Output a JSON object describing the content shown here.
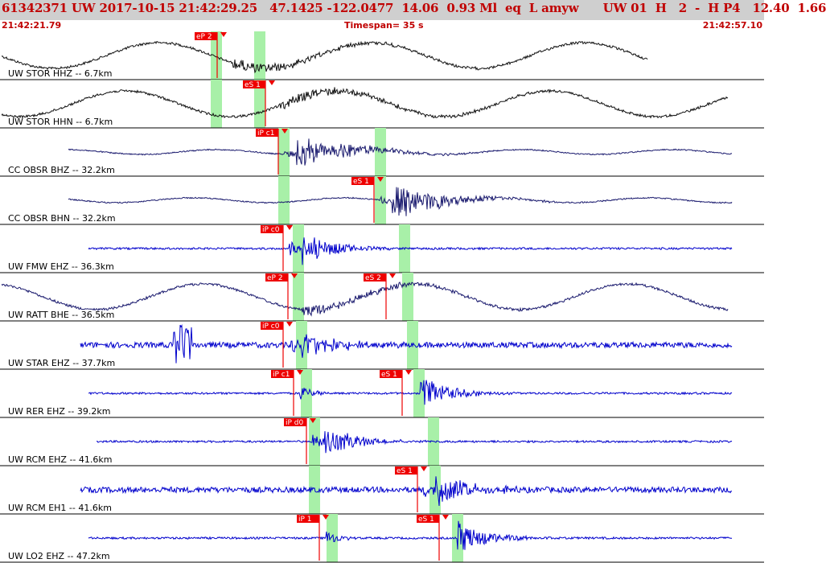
{
  "header": {
    "title": "61342371 UW 2017-10-15 21:42:29.25   47.1425 -122.0477  14.06  0.93 Ml  eq  L amyw      UW 01  H   2  -  H P4   12.40  1.66",
    "start_time": "21:42:21.79",
    "timespan": "Timespan=  35 s",
    "end_time": "21:42:57.10"
  },
  "colors": {
    "header_bg": "#cfcfcf",
    "header_text": "#c00000",
    "pick_red": "#ee0000",
    "highlight_green": "#a8f0a8",
    "trace_black": "#111111",
    "trace_navy": "#1a1a6e",
    "trace_blue": "#0000cc"
  },
  "channels": [
    {
      "label": "UW STOR HHZ -- 6.7km",
      "color": "trace_black",
      "type": "sine",
      "picks": [
        {
          "text": "eP 2",
          "pos": 262
        }
      ],
      "green": [
        262,
        316
      ]
    },
    {
      "label": "UW STOR HHN -- 6.7km",
      "color": "trace_black",
      "type": "sine",
      "picks": [
        {
          "text": "eS 1",
          "pos": 322
        }
      ],
      "green": [
        262,
        316
      ]
    },
    {
      "label": "CC OBSR BHZ -- 32.2km",
      "color": "trace_navy",
      "type": "low",
      "picks": [
        {
          "text": "iP c1",
          "pos": 338
        }
      ],
      "green": [
        346,
        466
      ]
    },
    {
      "label": "CC OBSR BHN -- 32.2km",
      "color": "trace_navy",
      "type": "low",
      "picks": [
        {
          "text": "eS 1",
          "pos": 457
        }
      ],
      "green": [
        346,
        466
      ]
    },
    {
      "label": "UW FMW EHZ -- 36.3km",
      "color": "trace_blue",
      "type": "flat",
      "picks": [
        {
          "text": "iP c0",
          "pos": 344
        }
      ],
      "green": [
        364,
        496
      ]
    },
    {
      "label": "UW RATT BHE -- 36.5km",
      "color": "trace_navy",
      "type": "sine",
      "picks": [
        {
          "text": "eP 2",
          "pos": 350
        },
        {
          "text": "eS 2",
          "pos": 472
        }
      ],
      "green": [
        364,
        500
      ]
    },
    {
      "label": "UW STAR EHZ -- 37.7km",
      "color": "trace_blue",
      "type": "noisy",
      "picks": [
        {
          "text": "iP c0",
          "pos": 344
        }
      ],
      "green": [
        368,
        506
      ]
    },
    {
      "label": "UW RER EHZ -- 39.2km",
      "color": "trace_blue",
      "type": "flat",
      "picks": [
        {
          "text": "iP c1",
          "pos": 357
        },
        {
          "text": "eS 1",
          "pos": 492
        }
      ],
      "green": [
        374,
        514
      ]
    },
    {
      "label": "UW RCM EHZ -- 41.6km",
      "color": "trace_blue",
      "type": "flat",
      "picks": [
        {
          "text": "iP d0",
          "pos": 373
        }
      ],
      "green": [
        384,
        532
      ]
    },
    {
      "label": "UW RCM EH1 -- 41.6km",
      "color": "trace_blue",
      "type": "noisy",
      "picks": [
        {
          "text": "eS 1",
          "pos": 511
        }
      ],
      "green": [
        384,
        534
      ]
    },
    {
      "label": "UW LO2 EHZ -- 47.2km",
      "color": "trace_blue",
      "type": "flat",
      "picks": [
        {
          "text": "iP 1",
          "pos": 389
        },
        {
          "text": "eS 1",
          "pos": 538
        }
      ],
      "green": [
        406,
        562
      ]
    }
  ]
}
